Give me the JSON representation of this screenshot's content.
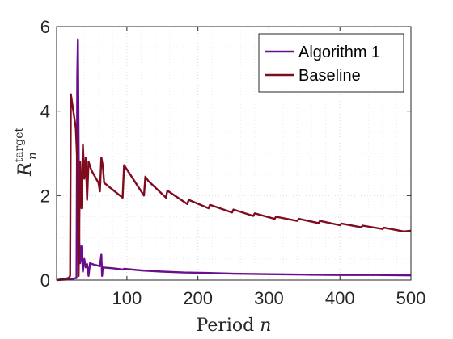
{
  "chart_data": {
    "type": "line",
    "xlabel": "Period n",
    "ylabel": "R_n^target",
    "xlim": [
      1,
      500
    ],
    "ylim": [
      0,
      6
    ],
    "xticks": [
      100,
      200,
      300,
      400,
      500
    ],
    "yticks": [
      0,
      2,
      4,
      6
    ],
    "grid": true,
    "legend_position": "top-right",
    "series": [
      {
        "name": "Algorithm 1",
        "color": "#6a0f8c",
        "points": [
          [
            1,
            0.0
          ],
          [
            20,
            0.02
          ],
          [
            29,
            0.05
          ],
          [
            30,
            4.8
          ],
          [
            31,
            5.7
          ],
          [
            32,
            3.2
          ],
          [
            33,
            0.9
          ],
          [
            34,
            0.4
          ],
          [
            36,
            0.8
          ],
          [
            38,
            0.2
          ],
          [
            40,
            0.5
          ],
          [
            42,
            0.3
          ],
          [
            44,
            0.38
          ],
          [
            46,
            0.1
          ],
          [
            48,
            0.4
          ],
          [
            55,
            0.36
          ],
          [
            62,
            0.33
          ],
          [
            64,
            0.6
          ],
          [
            65,
            0.1
          ],
          [
            66,
            0.3
          ],
          [
            80,
            0.28
          ],
          [
            95,
            0.25
          ],
          [
            96,
            0.27
          ],
          [
            120,
            0.23
          ],
          [
            150,
            0.2
          ],
          [
            180,
            0.18
          ],
          [
            210,
            0.17
          ],
          [
            250,
            0.15
          ],
          [
            300,
            0.14
          ],
          [
            350,
            0.13
          ],
          [
            400,
            0.12
          ],
          [
            450,
            0.12
          ],
          [
            500,
            0.11
          ]
        ]
      },
      {
        "name": "Baseline",
        "color": "#7f0b1e",
        "points": [
          [
            1,
            0.0
          ],
          [
            18,
            0.05
          ],
          [
            20,
            0.1
          ],
          [
            21,
            4.4
          ],
          [
            28,
            3.6
          ],
          [
            30,
            2.8
          ],
          [
            32,
            0.1
          ],
          [
            34,
            2.8
          ],
          [
            36,
            1.7
          ],
          [
            38,
            3.2
          ],
          [
            40,
            2.4
          ],
          [
            42,
            2.9
          ],
          [
            44,
            1.9
          ],
          [
            46,
            2.8
          ],
          [
            50,
            2.6
          ],
          [
            60,
            2.3
          ],
          [
            62,
            2.1
          ],
          [
            64,
            2.9
          ],
          [
            66,
            2.7
          ],
          [
            68,
            2.3
          ],
          [
            94,
            1.95
          ],
          [
            96,
            2.72
          ],
          [
            100,
            2.62
          ],
          [
            124,
            2.0
          ],
          [
            126,
            2.45
          ],
          [
            130,
            2.35
          ],
          [
            155,
            1.95
          ],
          [
            157,
            2.12
          ],
          [
            185,
            1.8
          ],
          [
            187,
            1.9
          ],
          [
            215,
            1.7
          ],
          [
            217,
            1.78
          ],
          [
            248,
            1.6
          ],
          [
            250,
            1.67
          ],
          [
            278,
            1.52
          ],
          [
            280,
            1.58
          ],
          [
            308,
            1.45
          ],
          [
            310,
            1.5
          ],
          [
            340,
            1.4
          ],
          [
            342,
            1.45
          ],
          [
            370,
            1.35
          ],
          [
            372,
            1.4
          ],
          [
            400,
            1.3
          ],
          [
            402,
            1.34
          ],
          [
            430,
            1.25
          ],
          [
            432,
            1.29
          ],
          [
            460,
            1.21
          ],
          [
            462,
            1.24
          ],
          [
            490,
            1.15
          ],
          [
            500,
            1.17
          ]
        ]
      }
    ]
  }
}
